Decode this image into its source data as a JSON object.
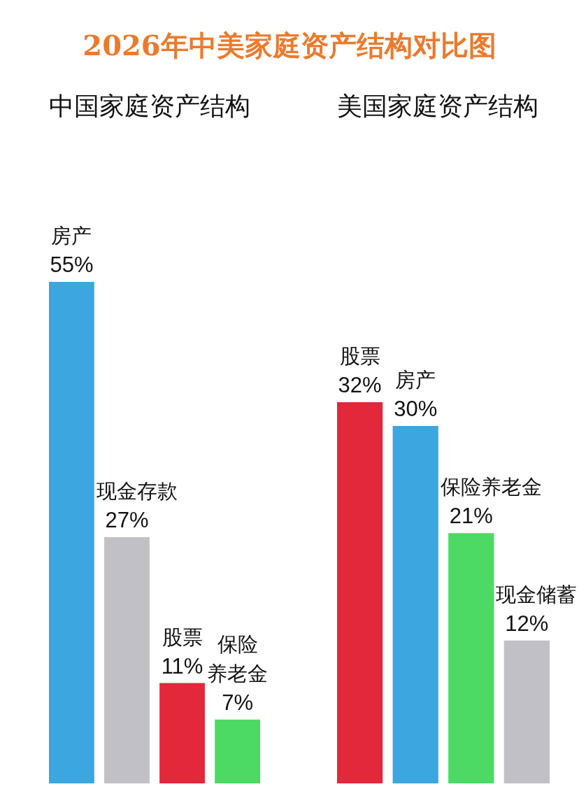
{
  "chart_data": [
    {
      "type": "other",
      "title": "2026年中美家庭资产结构对比图"
    },
    {
      "type": "bar",
      "title": "中国家庭资产结构",
      "categories": [
        "房产",
        "现金存款",
        "股票",
        "保险养老金"
      ],
      "values": [
        55,
        27,
        11,
        7
      ],
      "colors": [
        "#3ba6e0",
        "#c0c0c6",
        "#e2283a",
        "#4cd964"
      ],
      "value_labels": [
        "55%",
        "27%",
        "11%",
        "7%"
      ]
    },
    {
      "type": "bar",
      "title": "美国家庭资产结构",
      "categories": [
        "股票",
        "房产",
        "保险养老金",
        "现金储蓄"
      ],
      "values": [
        32,
        30,
        21,
        12
      ],
      "colors": [
        "#e2283a",
        "#3ba6e0",
        "#4cd964",
        "#c0c0c6"
      ],
      "value_labels": [
        "32%",
        "30%",
        "21%",
        "12%"
      ]
    }
  ]
}
